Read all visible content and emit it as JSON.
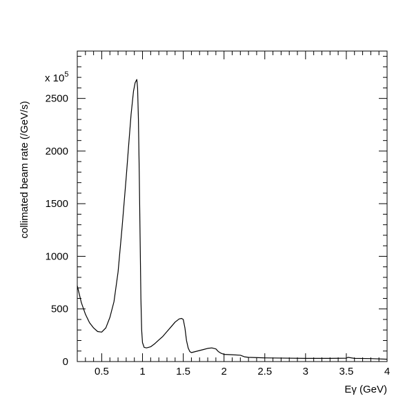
{
  "chart_data": {
    "type": "line",
    "title": "",
    "xlabel": "Eγ (GeV)",
    "ylabel": "collimated beam rate (/GeV/s)",
    "y_multiplier": "x 10",
    "y_multiplier_exponent": "5",
    "xlim": [
      0.2,
      4.0
    ],
    "ylim": [
      0,
      2950
    ],
    "x_ticks": [
      0.5,
      1,
      1.5,
      2,
      2.5,
      3,
      3.5,
      4
    ],
    "x_tick_labels": [
      "0.5",
      "1",
      "1.5",
      "2",
      "2.5",
      "3",
      "3.5",
      "4"
    ],
    "y_ticks": [
      0,
      500,
      1000,
      1500,
      2000,
      2500
    ],
    "y_tick_labels": [
      "0",
      "500",
      "1000",
      "1500",
      "2000",
      "2500"
    ],
    "grid": false,
    "legend": "none",
    "series": [
      {
        "x": [
          0.2,
          0.25,
          0.3,
          0.35,
          0.4,
          0.45,
          0.5,
          0.55,
          0.6,
          0.65,
          0.7,
          0.75,
          0.8,
          0.83,
          0.86,
          0.89,
          0.91,
          0.93,
          0.94,
          0.95,
          0.96,
          0.97,
          0.98,
          0.99,
          1.0,
          1.02,
          1.05,
          1.1,
          1.15,
          1.2,
          1.25,
          1.3,
          1.35,
          1.4,
          1.45,
          1.48,
          1.5,
          1.52,
          1.54,
          1.56,
          1.58,
          1.6,
          1.65,
          1.7,
          1.75,
          1.8,
          1.85,
          1.9,
          1.93,
          1.96,
          2.0,
          2.05,
          2.1,
          2.2,
          2.25,
          2.3,
          2.5,
          3.0,
          3.3,
          3.5,
          3.52,
          3.6,
          3.8,
          4.0
        ],
        "y": [
          720,
          560,
          450,
          370,
          320,
          285,
          280,
          320,
          420,
          570,
          850,
          1280,
          1750,
          2050,
          2350,
          2570,
          2650,
          2680,
          2600,
          2300,
          1800,
          1200,
          600,
          300,
          180,
          135,
          130,
          140,
          170,
          205,
          240,
          285,
          330,
          375,
          405,
          410,
          400,
          320,
          200,
          130,
          95,
          85,
          95,
          105,
          115,
          125,
          130,
          120,
          95,
          80,
          68,
          66,
          65,
          60,
          45,
          40,
          35,
          30,
          30,
          32,
          40,
          30,
          28,
          22
        ]
      }
    ]
  }
}
